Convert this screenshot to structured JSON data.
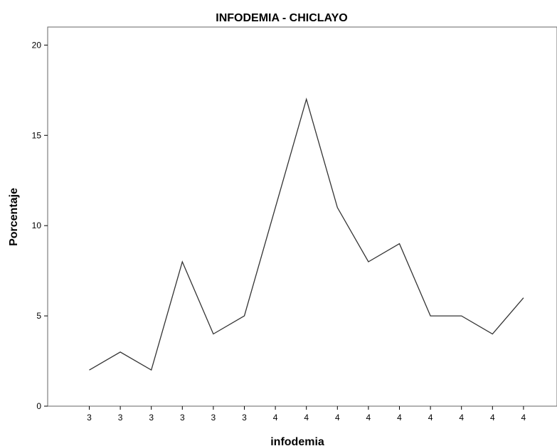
{
  "chart_data": {
    "type": "line",
    "title": "INFODEMIA - CHICLAYO",
    "xlabel": "infodemia",
    "ylabel": "Porcentaje",
    "categories": [
      "3",
      "3",
      "3",
      "3",
      "3",
      "3",
      "4",
      "4",
      "4",
      "4",
      "4",
      "4",
      "4",
      "4",
      "4"
    ],
    "series": [
      {
        "values": [
          2,
          3,
          2,
          8,
          4,
          5,
          11,
          17,
          11,
          8,
          9,
          5,
          5,
          4,
          6
        ]
      }
    ],
    "ylim": [
      0,
      21
    ],
    "yticks": [
      0,
      5,
      10,
      15,
      20
    ],
    "grid": false,
    "line_color": "#333333"
  }
}
